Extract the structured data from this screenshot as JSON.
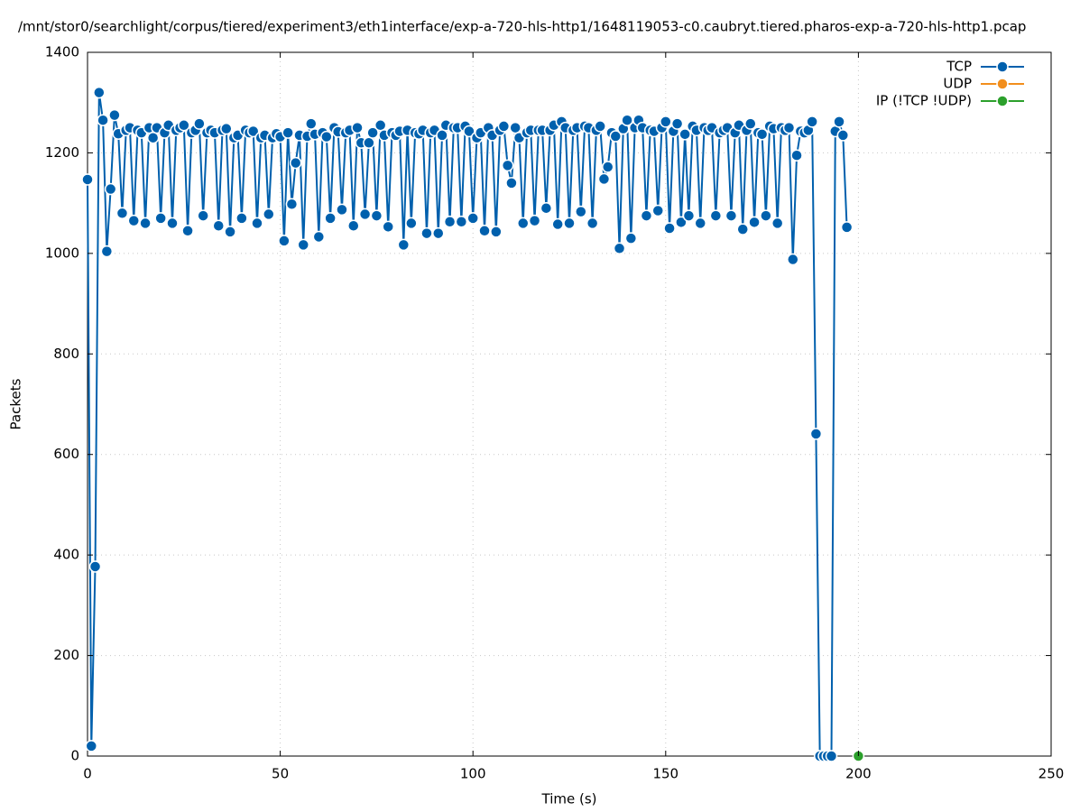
{
  "chart_data": {
    "type": "line",
    "title": "/mnt/stor0/searchlight/corpus/tiered/experiment3/eth1interface/exp-a-720-hls-http1/1648119053-c0.caubryt.tiered.pharos-exp-a-720-hls-http1.pcap",
    "xlabel": "Time (s)",
    "ylabel": "Packets",
    "xlim": [
      0,
      250
    ],
    "xticks": [
      0,
      50,
      100,
      150,
      200,
      250
    ],
    "ylim": [
      0,
      1400
    ],
    "yticks": [
      0,
      200,
      400,
      600,
      800,
      1000,
      1200,
      1400
    ],
    "grid": true,
    "legend": "top-right",
    "series": [
      {
        "name": "TCP",
        "color": "#0060ad",
        "x": [
          0,
          1,
          2,
          3,
          4,
          5,
          6,
          7,
          8,
          9,
          10,
          11,
          12,
          13,
          14,
          15,
          16,
          17,
          18,
          19,
          20,
          21,
          22,
          23,
          24,
          25,
          26,
          27,
          28,
          29,
          30,
          31,
          32,
          33,
          34,
          35,
          36,
          37,
          38,
          39,
          40,
          41,
          42,
          43,
          44,
          45,
          46,
          47,
          48,
          49,
          50,
          51,
          52,
          53,
          54,
          55,
          56,
          57,
          58,
          59,
          60,
          61,
          62,
          63,
          64,
          65,
          66,
          67,
          68,
          69,
          70,
          71,
          72,
          73,
          74,
          75,
          76,
          77,
          78,
          79,
          80,
          81,
          82,
          83,
          84,
          85,
          86,
          87,
          88,
          89,
          90,
          91,
          92,
          93,
          94,
          95,
          96,
          97,
          98,
          99,
          100,
          101,
          102,
          103,
          104,
          105,
          106,
          107,
          108,
          109,
          110,
          111,
          112,
          113,
          114,
          115,
          116,
          117,
          118,
          119,
          120,
          121,
          122,
          123,
          124,
          125,
          126,
          127,
          128,
          129,
          130,
          131,
          132,
          133,
          134,
          135,
          136,
          137,
          138,
          139,
          140,
          141,
          142,
          143,
          144,
          145,
          146,
          147,
          148,
          149,
          150,
          151,
          152,
          153,
          154,
          155,
          156,
          157,
          158,
          159,
          160,
          161,
          162,
          163,
          164,
          165,
          166,
          167,
          168,
          169,
          170,
          171,
          172,
          173,
          174,
          175,
          176,
          177,
          178,
          179,
          180,
          181,
          182,
          183,
          184,
          185,
          186,
          187,
          188,
          189,
          190,
          191,
          192,
          193,
          194,
          195,
          196,
          197
        ],
        "values": [
          1147,
          20,
          377,
          1320,
          1265,
          1004,
          1128,
          1275,
          1238,
          1080,
          1245,
          1250,
          1065,
          1245,
          1240,
          1060,
          1250,
          1230,
          1250,
          1070,
          1240,
          1255,
          1060,
          1245,
          1250,
          1255,
          1045,
          1240,
          1245,
          1258,
          1075,
          1240,
          1245,
          1240,
          1055,
          1245,
          1248,
          1043,
          1230,
          1235,
          1070,
          1245,
          1240,
          1243,
          1060,
          1230,
          1235,
          1078,
          1230,
          1238,
          1232,
          1025,
          1240,
          1098,
          1180,
          1235,
          1017,
          1233,
          1258,
          1237,
          1033,
          1240,
          1232,
          1070,
          1250,
          1242,
          1087,
          1240,
          1245,
          1055,
          1250,
          1220,
          1078,
          1220,
          1240,
          1075,
          1255,
          1235,
          1053,
          1240,
          1235,
          1243,
          1017,
          1245,
          1060,
          1240,
          1238,
          1245,
          1040,
          1240,
          1245,
          1040,
          1235,
          1255,
          1063,
          1250,
          1250,
          1063,
          1253,
          1243,
          1070,
          1230,
          1240,
          1045,
          1250,
          1235,
          1043,
          1245,
          1253,
          1175,
          1140,
          1250,
          1230,
          1060,
          1240,
          1245,
          1065,
          1245,
          1245,
          1090,
          1245,
          1255,
          1058,
          1262,
          1250,
          1060,
          1245,
          1250,
          1083,
          1253,
          1250,
          1060,
          1245,
          1253,
          1148,
          1172,
          1240,
          1233,
          1010,
          1248,
          1265,
          1030,
          1250,
          1265,
          1250,
          1075,
          1245,
          1243,
          1085,
          1250,
          1262,
          1050,
          1243,
          1258,
          1062,
          1237,
          1075,
          1253,
          1245,
          1060,
          1250,
          1245,
          1250,
          1075,
          1240,
          1245,
          1250,
          1075,
          1240,
          1255,
          1048,
          1245,
          1258,
          1062,
          1240,
          1237,
          1075,
          1253,
          1248,
          1060,
          1250,
          1245,
          1250,
          988,
          1195,
          1243,
          1240,
          1245,
          1262,
          641,
          0,
          0,
          0,
          0,
          1243,
          1262,
          1235,
          1052
        ]
      },
      {
        "name": "UDP",
        "color": "#f28e1c",
        "x": [],
        "values": []
      },
      {
        "name": "IP (!TCP  !UDP)",
        "color": "#2ca02c",
        "x": [
          200
        ],
        "values": [
          0
        ]
      }
    ]
  }
}
